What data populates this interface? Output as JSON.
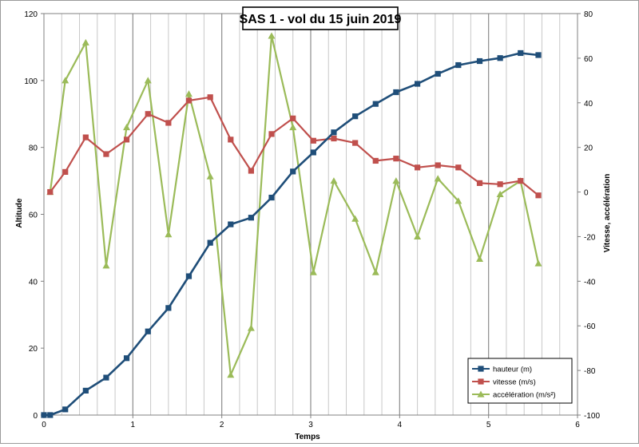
{
  "chart_data": {
    "type": "line",
    "title": "SAS 1 - vol du 15 juin 2019",
    "xlabel": "Temps",
    "ylabel_left": "Altitude",
    "ylabel_right": "Vitesse, accélération",
    "xlim": [
      0,
      6
    ],
    "ylim_left": [
      0,
      120
    ],
    "ylim_right": [
      -100,
      80
    ],
    "x_ticks": [
      "0",
      "1",
      "2",
      "3",
      "4",
      "5",
      "6"
    ],
    "y_ticks_left": [
      "0",
      "20",
      "40",
      "60",
      "80",
      "100",
      "120"
    ],
    "y_ticks_right": [
      "-100",
      "-80",
      "-60",
      "-40",
      "-20",
      "0",
      "20",
      "40",
      "60",
      "80"
    ],
    "grid": true,
    "legend_position": "bottom-right",
    "series": [
      {
        "name": "hauteur (m)",
        "axis": "left",
        "color": "#1f4e79",
        "marker": "square",
        "x": [
          0,
          0.07,
          0.24,
          0.47,
          0.7,
          0.93,
          1.17,
          1.4,
          1.63,
          1.87,
          2.1,
          2.33,
          2.56,
          2.8,
          3.03,
          3.26,
          3.5,
          3.73,
          3.96,
          4.2,
          4.43,
          4.66,
          4.9,
          5.13,
          5.36,
          5.56
        ],
        "values": [
          0,
          0,
          1.7,
          7.3,
          11.2,
          17,
          25,
          32,
          41.5,
          51.5,
          57,
          59,
          65,
          72.8,
          78.5,
          84.5,
          89.3,
          93,
          96.5,
          99,
          102,
          104.6,
          105.8,
          106.7,
          108.2,
          107.6
        ]
      },
      {
        "name": "vitesse (m/s)",
        "axis": "right",
        "color": "#c0504d",
        "marker": "square",
        "x": [
          0.07,
          0.24,
          0.47,
          0.7,
          0.93,
          1.17,
          1.4,
          1.63,
          1.87,
          2.1,
          2.33,
          2.56,
          2.8,
          3.03,
          3.26,
          3.5,
          3.73,
          3.96,
          4.2,
          4.43,
          4.66,
          4.9,
          5.13,
          5.36,
          5.56
        ],
        "values": [
          0,
          9,
          24.5,
          17,
          23.5,
          35,
          31,
          41,
          42.5,
          23.5,
          9.5,
          26,
          33,
          23,
          24,
          22,
          14,
          15,
          11,
          12,
          11,
          4,
          3.5,
          5,
          -1.5
        ]
      },
      {
        "name": "accélération (m/s²)",
        "axis": "right",
        "color": "#9bbb59",
        "marker": "triangle",
        "x": [
          0.07,
          0.24,
          0.47,
          0.7,
          0.93,
          1.17,
          1.4,
          1.63,
          1.87,
          2.1,
          2.33,
          2.56,
          2.8,
          3.03,
          3.26,
          3.5,
          3.73,
          3.96,
          4.2,
          4.43,
          4.66,
          4.9,
          5.13,
          5.36,
          5.56
        ],
        "values": [
          0,
          50,
          67,
          -33,
          29,
          50,
          -19,
          44,
          7,
          -82,
          -61,
          70,
          29,
          -36,
          5,
          -12,
          -36,
          5,
          -20,
          6,
          -4,
          -30,
          -1,
          5,
          -32
        ]
      }
    ]
  }
}
